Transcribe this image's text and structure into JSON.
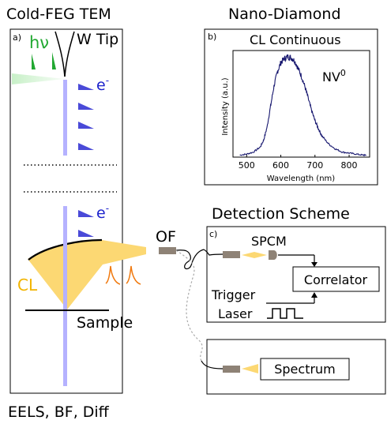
{
  "headers": {
    "tem": "Cold-FEG TEM",
    "nano": "Nano-Diamond",
    "detection": "Detection Scheme",
    "bottom": "EELS, BF, Diff"
  },
  "panel_a": {
    "letter": "a)",
    "hv": "hν",
    "w_tip": "W Tip",
    "electron_top": "e",
    "electron_bottom": "e",
    "electron_sup": "-",
    "cl": "CL",
    "sample": "Sample",
    "of": "OF"
  },
  "panel_b": {
    "letter": "b)",
    "title": "CL Continuous",
    "annotation": "NV",
    "annotation_sup": "0"
  },
  "panel_c": {
    "letter": "c)",
    "spcm": "SPCM",
    "correlator": "Correlator",
    "trigger": "Trigger",
    "laser": "Laser",
    "spectrum": "Spectrum"
  },
  "colors": {
    "electron_beam": "#b5b2ff",
    "electron_label": "#1c22cc",
    "cl_cone": "#fcd873",
    "cl_label": "#f2b400",
    "hv_green": "#22a832",
    "pulse_orange": "#f07a10",
    "spectrum_line": "#16166e"
  },
  "chart_data": {
    "type": "line",
    "title": "CL Continuous",
    "xlabel": "Wavelength (nm)",
    "ylabel": "Intensity (a.u.)",
    "xlim": [
      460,
      860
    ],
    "xticks": [
      500,
      600,
      700,
      800
    ],
    "yticks": [],
    "ylim": [
      0,
      1.05
    ],
    "grid": false,
    "series": [
      {
        "x": [
          480,
          500,
          520,
          540,
          550,
          560,
          570,
          580,
          590,
          600,
          610,
          620,
          630,
          640,
          650,
          660,
          670,
          680,
          690,
          700,
          710,
          720,
          740,
          760,
          780,
          800,
          820,
          840,
          850
        ],
        "y": [
          0.02,
          0.03,
          0.05,
          0.1,
          0.17,
          0.3,
          0.5,
          0.7,
          0.84,
          0.93,
          0.97,
          0.99,
          0.98,
          0.95,
          0.88,
          0.8,
          0.7,
          0.58,
          0.46,
          0.36,
          0.28,
          0.21,
          0.13,
          0.08,
          0.05,
          0.04,
          0.03,
          0.02,
          0.02
        ]
      }
    ]
  }
}
